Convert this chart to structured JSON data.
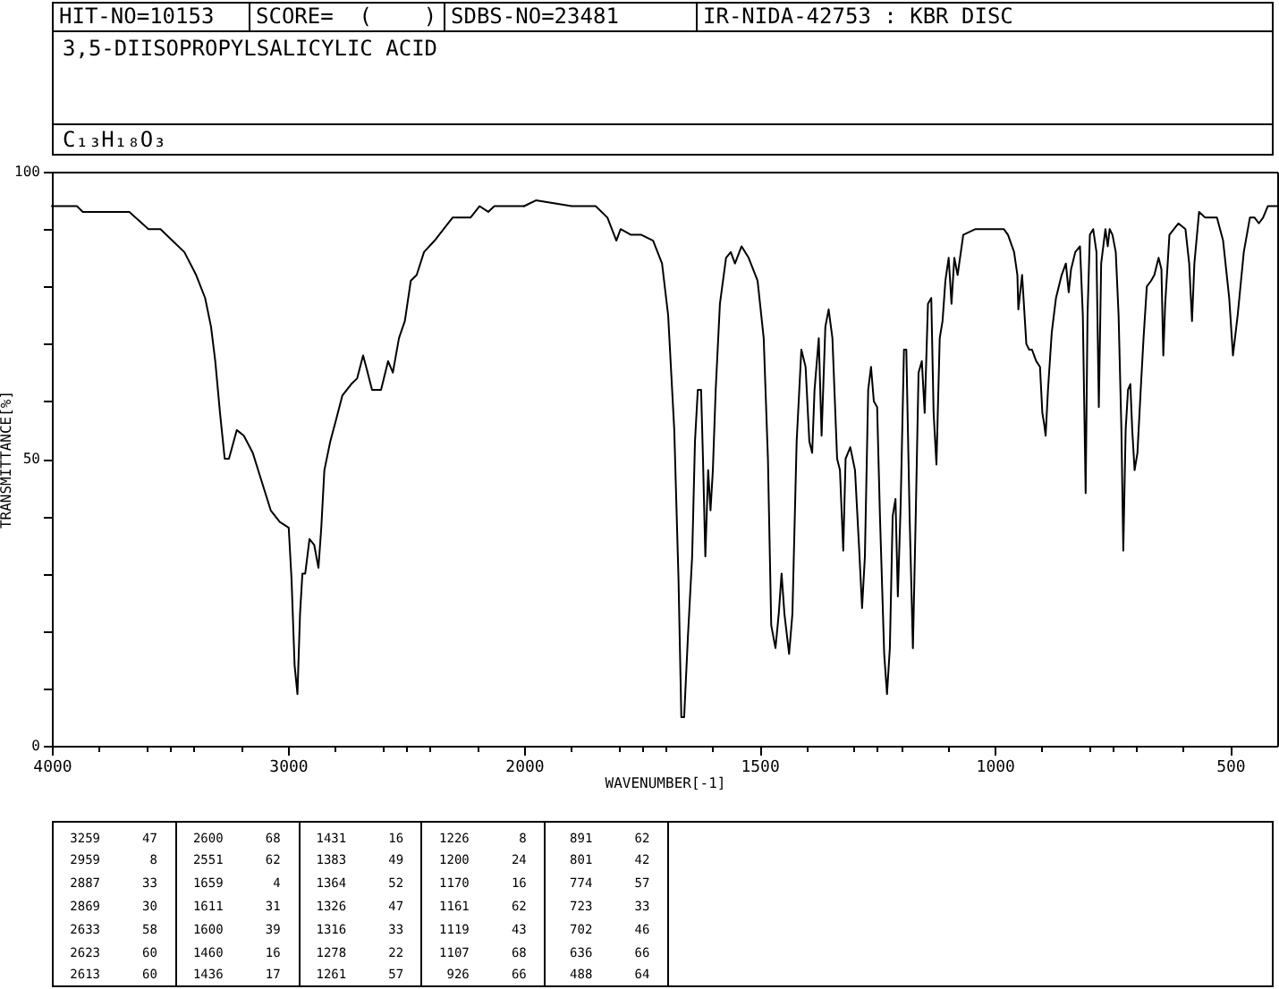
{
  "chart_data": [
    {
      "type": "line",
      "title": "3,5-DIISOPROPYLSALICYLIC ACID",
      "subtitle": "C₁₃H₁₈O₃",
      "ylabel": "TRANSMITTANCE[%]",
      "annotations": [
        "HIT-NO=10153",
        "SCORE=  (    )",
        "SDBS-NO=23481",
        "IR-NIDA-42753 : KBR DISC",
        "3259 47",
        "2959 8",
        "2887 33",
        "2869 30",
        "2633 58",
        "2623 60",
        "2613 60",
        "2600 68",
        "2551 62",
        "1659 4",
        "1611 31",
        "1600 39",
        "1460 16",
        "1436 17",
        "1431 16",
        "1383 49",
        "1364 52",
        "1326 47",
        "1316 33",
        "1278 22",
        "1261 57",
        "1226 8",
        "1200 24",
        "1170 16",
        "1161 62",
        "1119 43",
        "1107 68",
        "926 66",
        "891 62",
        "801 42",
        "774 57",
        "723 33",
        "702 46",
        "636 66",
        "488 64"
      ],
      "color": "#000000",
      "x": [
        4000,
        3970,
        3894,
        3869,
        3768,
        3672,
        3591,
        3540,
        3490,
        3439,
        3389,
        3351,
        3326,
        3308,
        3288,
        3268,
        3250,
        3217,
        3187,
        3149,
        3111,
        3073,
        3035,
        2997,
        2985,
        2972,
        2960,
        2949,
        2939,
        2927,
        2909,
        2889,
        2871,
        2859,
        2846,
        2821,
        2795,
        2770,
        2732,
        2707,
        2682,
        2669,
        2644,
        2606,
        2576,
        2556,
        2530,
        2505,
        2480,
        2455,
        2424,
        2379,
        2303,
        2227,
        2189,
        2152,
        2126,
        2051,
        2000
      ],
      "values": [
        94,
        94,
        94,
        93,
        93,
        93,
        90,
        90,
        88,
        86,
        82,
        78,
        73,
        67,
        58,
        50,
        50,
        55,
        54,
        51,
        46,
        41,
        39,
        38,
        29,
        14,
        9,
        23,
        30,
        30,
        36,
        35,
        31,
        38,
        48,
        53,
        57,
        61,
        63,
        64,
        68,
        66,
        62,
        62,
        67,
        65,
        71,
        74,
        81,
        82,
        86,
        88,
        92,
        92,
        94,
        93,
        94,
        94,
        94
      ],
      "xlim": [
        4000,
        2000
      ],
      "xticks": [
        4000,
        {
          "value": 3800,
          "label": null
        },
        {
          "value": 3600,
          "label": null
        },
        {
          "value": 3500,
          "label": null
        },
        {
          "value": 3400,
          "label": null
        },
        {
          "value": 3200,
          "label": null
        },
        3000,
        {
          "value": 2800,
          "label": null
        },
        {
          "value": 2600,
          "label": null
        },
        {
          "value": 2500,
          "label": null
        },
        {
          "value": 2400,
          "label": null
        },
        {
          "value": 2200,
          "label": null
        },
        2000
      ],
      "ylim": [
        0,
        100
      ],
      "yticks": [
        0,
        {
          "value": 10,
          "label": null
        },
        {
          "value": 20,
          "label": null
        },
        {
          "value": 30,
          "label": null
        },
        {
          "value": 40,
          "label": null
        },
        50,
        {
          "value": 60,
          "label": null
        },
        {
          "value": 70,
          "label": null
        },
        {
          "value": 80,
          "label": null
        },
        {
          "value": 90,
          "label": null
        },
        100
      ]
    },
    {
      "type": "line",
      "xlabel": "WAVENUMBER[-1]",
      "color": "#000000",
      "x": [
        2000,
        1975,
        1899,
        1848,
        1823,
        1804,
        1795,
        1773,
        1751,
        1726,
        1707,
        1694,
        1681,
        1672,
        1666,
        1660,
        1652,
        1643,
        1637,
        1631,
        1624,
        1620,
        1615,
        1609,
        1604,
        1599,
        1593,
        1584,
        1571,
        1561,
        1552,
        1538,
        1523,
        1504,
        1491,
        1482,
        1475,
        1466,
        1459,
        1453,
        1447,
        1437,
        1430,
        1421,
        1411,
        1402,
        1394,
        1388,
        1383,
        1374,
        1368,
        1360,
        1353,
        1345,
        1335,
        1329,
        1322,
        1317,
        1307,
        1297,
        1288,
        1282,
        1276,
        1269,
        1263,
        1257,
        1250,
        1244,
        1235,
        1229,
        1223,
        1217,
        1211,
        1206,
        1200,
        1193,
        1188,
        1181,
        1174,
        1168,
        1162,
        1155,
        1149,
        1142,
        1135,
        1130,
        1124,
        1117,
        1111,
        1105,
        1098,
        1092,
        1086,
        1079,
        1067,
        1041,
        1016,
        997,
        981,
        972,
        959,
        952,
        950,
        942,
        933,
        927,
        921,
        912,
        904,
        899,
        895,
        892,
        887,
        879,
        870,
        858,
        849,
        843,
        838,
        829,
        819,
        813,
        807,
        803,
        798,
        791,
        784,
        779,
        774,
        765,
        760,
        756,
        750,
        743,
        737,
        731,
        727,
        722,
        717,
        712,
        708,
        703,
        697,
        690,
        684,
        677,
        668,
        661,
        652,
        646,
        642,
        638,
        629,
        610,
        595,
        587,
        581,
        576,
        566,
        553,
        528,
        515,
        502,
        494,
        484,
        471,
        458,
        448,
        439,
        430,
        420,
        400
      ],
      "values": [
        94,
        95,
        94,
        94,
        92,
        88,
        90,
        89,
        89,
        88,
        84,
        75,
        55,
        29,
        5,
        5,
        19,
        33,
        53,
        62,
        62,
        50,
        33,
        48,
        41,
        48,
        62,
        77,
        85,
        86,
        84,
        87,
        85,
        81,
        71,
        50,
        21,
        17,
        23,
        30,
        23,
        16,
        23,
        53,
        69,
        66,
        53,
        51,
        62,
        71,
        54,
        73,
        76,
        71,
        50,
        48,
        34,
        50,
        52,
        48,
        34,
        24,
        33,
        62,
        66,
        60,
        59,
        40,
        16,
        9,
        17,
        40,
        43,
        26,
        42,
        69,
        69,
        40,
        17,
        40,
        65,
        67,
        58,
        77,
        78,
        58,
        49,
        71,
        74,
        81,
        85,
        77,
        85,
        82,
        89,
        90,
        90,
        90,
        90,
        89,
        86,
        82,
        76,
        82,
        70,
        69,
        69,
        67,
        66,
        58,
        56,
        54,
        62,
        72,
        78,
        82,
        84,
        79,
        83,
        86,
        87,
        75,
        44,
        75,
        89,
        90,
        86,
        59,
        84,
        90,
        87,
        90,
        89,
        86,
        75,
        55,
        34,
        55,
        62,
        63,
        55,
        48,
        51,
        62,
        71,
        80,
        81,
        82,
        85,
        83,
        68,
        77,
        89,
        91,
        90,
        84,
        74,
        84,
        93,
        92,
        92,
        88,
        78,
        68,
        75,
        86,
        92,
        92,
        91,
        92,
        94,
        94
      ],
      "xlim": [
        2000,
        400
      ],
      "xticks": [
        {
          "value": 1900,
          "label": null
        },
        {
          "value": 1800,
          "label": null
        },
        {
          "value": 1750,
          "label": null
        },
        {
          "value": 1700,
          "label": null
        },
        {
          "value": 1600,
          "label": null
        },
        1500,
        {
          "value": 1400,
          "label": null
        },
        {
          "value": 1300,
          "label": null
        },
        {
          "value": 1250,
          "label": null
        },
        {
          "value": 1200,
          "label": null
        },
        {
          "value": 1100,
          "label": null
        },
        1000,
        {
          "value": 900,
          "label": null
        },
        {
          "value": 800,
          "label": null
        },
        {
          "value": 750,
          "label": null
        },
        {
          "value": 700,
          "label": null
        },
        {
          "value": 600,
          "label": null
        },
        500
      ],
      "ylim": [
        0,
        100
      ],
      "tick_labels": "x"
    }
  ]
}
